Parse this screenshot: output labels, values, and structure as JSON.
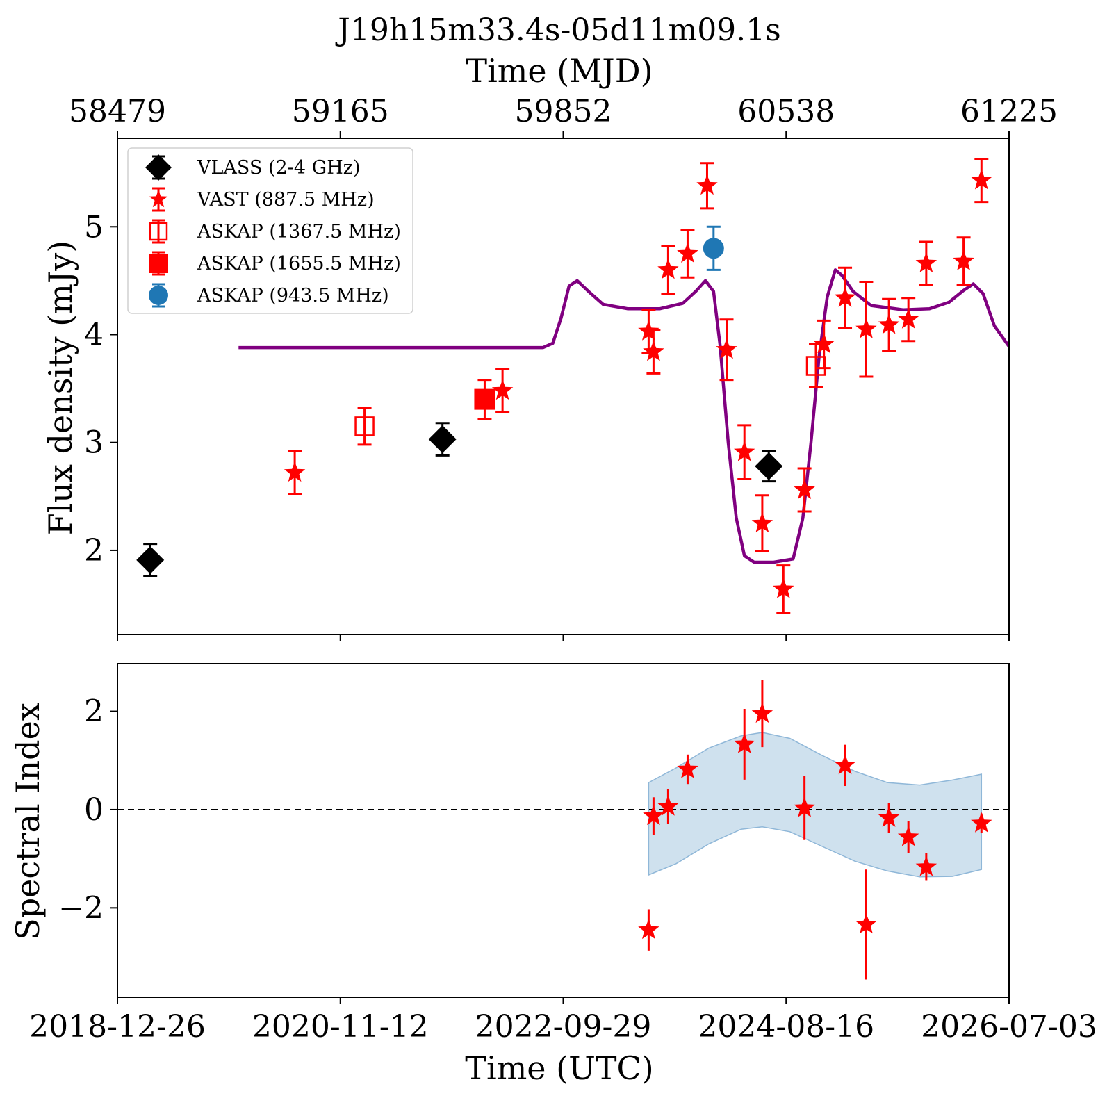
{
  "chart_data": [
    {
      "type": "scatter",
      "title": "J19h15m33.4s-05d11m09.1s",
      "secondary_xlabel": "Time (MJD)",
      "secondary_xticks": [
        "58479",
        "59165",
        "59852",
        "60538",
        "61225"
      ],
      "ylabel": "Flux density (mJy)",
      "xlim": [
        58479,
        61225
      ],
      "ylim": [
        1.22,
        5.82
      ],
      "yticks": [
        "2",
        "3",
        "4",
        "5"
      ],
      "legend": {
        "position": "upper-left",
        "entries": [
          {
            "label": "VLASS (2-4 GHz)",
            "marker": "diamond",
            "color": "#000000"
          },
          {
            "label": "VAST (887.5 MHz)",
            "marker": "star",
            "color": "#ff0000"
          },
          {
            "label": "ASKAP (1367.5 MHz)",
            "marker": "open-square",
            "color": "#ff0000"
          },
          {
            "label": "ASKAP (1655.5 MHz)",
            "marker": "square",
            "color": "#ff0000"
          },
          {
            "label": "ASKAP (943.5 MHz)",
            "marker": "circle",
            "color": "#1f77b4"
          }
        ]
      },
      "series": [
        {
          "name": "VLASS (2-4 GHz)",
          "marker": "diamond",
          "color": "#000000",
          "points": [
            [
              58580,
              1.91,
              0.15
            ],
            [
              59480,
              3.03,
              0.15
            ],
            [
              60485,
              2.78,
              0.14
            ]
          ]
        },
        {
          "name": "VAST (887.5 MHz)",
          "marker": "star",
          "color": "#ff0000",
          "points": [
            [
              59025,
              2.72,
              0.2
            ],
            [
              59665,
              3.48,
              0.2
            ],
            [
              60115,
              4.03,
              0.2
            ],
            [
              60130,
              3.84,
              0.2
            ],
            [
              60175,
              4.6,
              0.22
            ],
            [
              60235,
              4.75,
              0.22
            ],
            [
              60295,
              5.38,
              0.21
            ],
            [
              60355,
              3.86,
              0.28
            ],
            [
              60410,
              2.91,
              0.25
            ],
            [
              60465,
              2.25,
              0.26
            ],
            [
              60530,
              1.64,
              0.22
            ],
            [
              60595,
              2.56,
              0.2
            ],
            [
              60655,
              3.91,
              0.22
            ],
            [
              60720,
              4.34,
              0.28
            ],
            [
              60785,
              4.05,
              0.44
            ],
            [
              60855,
              4.09,
              0.24
            ],
            [
              60915,
              4.14,
              0.2
            ],
            [
              60970,
              4.66,
              0.2
            ],
            [
              61085,
              4.68,
              0.22
            ],
            [
              61140,
              5.43,
              0.2
            ]
          ]
        },
        {
          "name": "ASKAP (1367.5 MHz)",
          "marker": "open-square",
          "color": "#ff0000",
          "points": [
            [
              59240,
              3.15,
              0.17
            ],
            [
              60630,
              3.71,
              0.2
            ]
          ]
        },
        {
          "name": "ASKAP (1655.5 MHz)",
          "marker": "square",
          "color": "#ff0000",
          "points": [
            [
              59610,
              3.4,
              0.18
            ]
          ]
        },
        {
          "name": "ASKAP (943.5 MHz)",
          "marker": "circle",
          "color": "#1f77b4",
          "points": [
            [
              60315,
              4.8,
              0.2
            ]
          ]
        }
      ],
      "model_curve": {
        "color": "#800080",
        "points": [
          [
            58852,
            3.88
          ],
          [
            59600,
            3.88
          ],
          [
            59700,
            3.88
          ],
          [
            59790,
            3.88
          ],
          [
            59820,
            3.92
          ],
          [
            59845,
            4.15
          ],
          [
            59870,
            4.45
          ],
          [
            59895,
            4.5
          ],
          [
            59930,
            4.4
          ],
          [
            59975,
            4.28
          ],
          [
            60050,
            4.24
          ],
          [
            60150,
            4.24
          ],
          [
            60220,
            4.29
          ],
          [
            60260,
            4.4
          ],
          [
            60290,
            4.5
          ],
          [
            60315,
            4.4
          ],
          [
            60335,
            3.9
          ],
          [
            60360,
            3.0
          ],
          [
            60385,
            2.3
          ],
          [
            60410,
            1.95
          ],
          [
            60440,
            1.89
          ],
          [
            60500,
            1.89
          ],
          [
            60560,
            1.92
          ],
          [
            60590,
            2.3
          ],
          [
            60615,
            3.0
          ],
          [
            60640,
            3.8
          ],
          [
            60665,
            4.35
          ],
          [
            60690,
            4.6
          ],
          [
            60710,
            4.55
          ],
          [
            60745,
            4.4
          ],
          [
            60800,
            4.27
          ],
          [
            60900,
            4.23
          ],
          [
            60980,
            4.24
          ],
          [
            61040,
            4.3
          ],
          [
            61085,
            4.41
          ],
          [
            61115,
            4.47
          ],
          [
            61145,
            4.38
          ],
          [
            61180,
            4.08
          ],
          [
            61225,
            3.89
          ]
        ]
      }
    },
    {
      "type": "scatter",
      "xlabel": "Time (UTC)",
      "ylabel": "Spectral Index",
      "xlim": [
        58479,
        61225
      ],
      "ylim": [
        -3.82,
        2.97
      ],
      "yticks": [
        "2",
        "0",
        "−2"
      ],
      "xticks": [
        "2018-12-26",
        "2020-11-12",
        "2022-09-29",
        "2024-08-16",
        "2026-07-03"
      ],
      "reference_line": {
        "y": 0,
        "style": "dashed",
        "color": "#000000"
      },
      "series": [
        {
          "name": "",
          "marker": "star",
          "color": "#ff0000",
          "points": [
            [
              60115,
              -2.45,
              0.42
            ],
            [
              60130,
              -0.13,
              0.38
            ],
            [
              60175,
              0.06,
              0.35
            ],
            [
              60235,
              0.82,
              0.3
            ],
            [
              60410,
              1.33,
              0.72
            ],
            [
              60465,
              1.95,
              0.68
            ],
            [
              60595,
              0.03,
              0.65
            ],
            [
              60720,
              0.9,
              0.42
            ],
            [
              60785,
              -2.34,
              1.12
            ],
            [
              60855,
              -0.17,
              0.3
            ],
            [
              60915,
              -0.56,
              0.32
            ],
            [
              60970,
              -1.17,
              0.28
            ],
            [
              61140,
              -0.28,
              0.2
            ]
          ]
        }
      ],
      "band": {
        "color": "#a8c8e0",
        "x": [
          60115,
          60200,
          60300,
          60400,
          60465,
          60550,
          60650,
          60750,
          60850,
          60950,
          61050,
          61140
        ],
        "upper": [
          0.55,
          0.85,
          1.25,
          1.5,
          1.57,
          1.45,
          1.1,
          0.78,
          0.55,
          0.5,
          0.6,
          0.72
        ],
        "lower": [
          -1.33,
          -1.1,
          -0.7,
          -0.4,
          -0.35,
          -0.45,
          -0.75,
          -1.05,
          -1.25,
          -1.37,
          -1.36,
          -1.22
        ]
      }
    }
  ]
}
